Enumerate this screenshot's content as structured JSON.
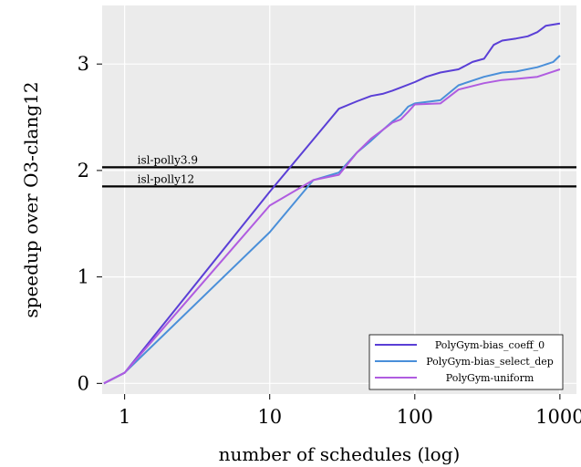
{
  "chart_data": {
    "type": "line",
    "xlabel": "number of schedules (log)",
    "ylabel": "speedup over O3-clang12",
    "xscale": "log",
    "xlim": [
      0.7,
      1300
    ],
    "ylim": [
      -0.1,
      3.55
    ],
    "xticks": [
      1,
      10,
      100,
      1000
    ],
    "xtick_labels": [
      "1",
      "10",
      "100",
      "1000"
    ],
    "yticks": [
      0,
      1,
      2,
      3
    ],
    "ytick_labels": [
      "0",
      "1",
      "2",
      "3"
    ],
    "grid": true,
    "background": "#ebebeb",
    "legend_position": "bottom-right",
    "reference_lines": [
      {
        "label": "isl-polly3.9",
        "y": 2.03
      },
      {
        "label": "isl-polly12",
        "y": 1.85
      }
    ],
    "series": [
      {
        "name": "PolyGym-bias_coeff_0",
        "color": "#5a3fd6",
        "x": [
          0.72,
          1,
          10,
          30,
          40,
          50,
          60,
          70,
          80,
          100,
          120,
          150,
          200,
          250,
          300,
          350,
          400,
          500,
          600,
          700,
          800,
          1000
        ],
        "y": [
          0,
          0.1,
          1.8,
          2.58,
          2.65,
          2.7,
          2.72,
          2.75,
          2.78,
          2.83,
          2.88,
          2.92,
          2.95,
          3.02,
          3.05,
          3.18,
          3.22,
          3.24,
          3.26,
          3.3,
          3.36,
          3.38
        ]
      },
      {
        "name": "PolyGym-bias_select_dep",
        "color": "#4a8fd9",
        "x": [
          0.72,
          1,
          10,
          20,
          30,
          40,
          50,
          60,
          70,
          80,
          90,
          100,
          150,
          200,
          300,
          400,
          500,
          700,
          900,
          1000
        ],
        "y": [
          0,
          0.1,
          1.42,
          1.91,
          1.98,
          2.17,
          2.28,
          2.38,
          2.46,
          2.52,
          2.6,
          2.63,
          2.66,
          2.8,
          2.88,
          2.92,
          2.93,
          2.97,
          3.02,
          3.08
        ]
      },
      {
        "name": "PolyGym-uniform",
        "color": "#b05ce0",
        "x": [
          0.72,
          1,
          10,
          20,
          30,
          40,
          50,
          60,
          70,
          80,
          90,
          100,
          150,
          200,
          300,
          400,
          500,
          700,
          900,
          1000
        ],
        "y": [
          0,
          0.1,
          1.67,
          1.91,
          1.96,
          2.17,
          2.3,
          2.38,
          2.45,
          2.48,
          2.55,
          2.62,
          2.63,
          2.76,
          2.82,
          2.85,
          2.86,
          2.88,
          2.93,
          2.95
        ]
      }
    ]
  }
}
